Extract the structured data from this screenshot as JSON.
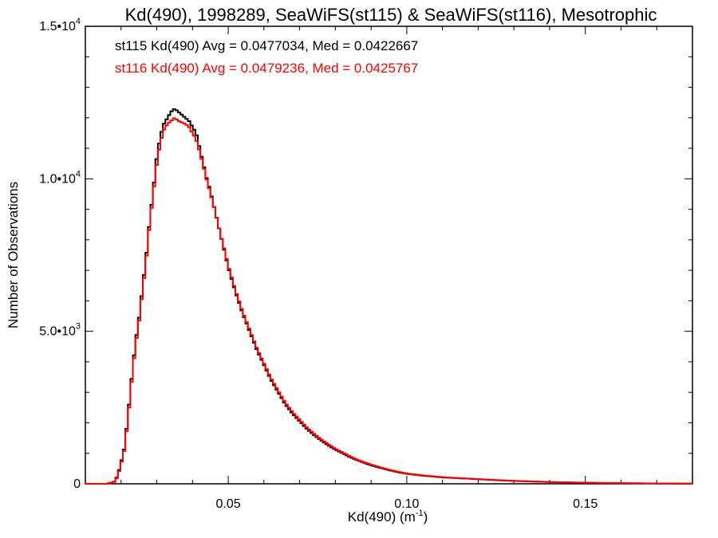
{
  "chart_data": {
    "type": "line",
    "title": "Kd(490), 1998289, SeaWiFS(st115) & SeaWiFS(st116), Mesotrophic",
    "xlabel": "Kd(490) (m",
    "xlabel_sup": "-1",
    "xlabel_end": ")",
    "ylabel": "Number of Observations",
    "xlim": [
      0.01,
      0.18
    ],
    "ylim": [
      0,
      15000
    ],
    "x_ticks": [
      {
        "value": 0.05,
        "label": "0.05"
      },
      {
        "value": 0.1,
        "label": "0.10"
      },
      {
        "value": 0.15,
        "label": "0.15"
      }
    ],
    "y_ticks": [
      {
        "value": 0,
        "mant": "0",
        "exp": ""
      },
      {
        "value": 5000,
        "mant": "5.0•10",
        "exp": "3"
      },
      {
        "value": 10000,
        "mant": "1.0•10",
        "exp": "4"
      },
      {
        "value": 15000,
        "mant": "1.5•10",
        "exp": "4"
      }
    ],
    "grid": false,
    "series": [
      {
        "name": "st115",
        "color": "#000000",
        "stats_text": "st115 Kd(490) Avg = 0.0477034, Med = 0.0422667",
        "points": [
          [
            0.01,
            0
          ],
          [
            0.016,
            0
          ],
          [
            0.018,
            60
          ],
          [
            0.019,
            250
          ],
          [
            0.02,
            700
          ],
          [
            0.021,
            1200
          ],
          [
            0.022,
            2300
          ],
          [
            0.023,
            3500
          ],
          [
            0.024,
            4600
          ],
          [
            0.025,
            5400
          ],
          [
            0.026,
            6400
          ],
          [
            0.027,
            7400
          ],
          [
            0.028,
            8600
          ],
          [
            0.029,
            9600
          ],
          [
            0.03,
            10700
          ],
          [
            0.031,
            11400
          ],
          [
            0.032,
            11800
          ],
          [
            0.033,
            12000
          ],
          [
            0.034,
            12200
          ],
          [
            0.035,
            12300
          ],
          [
            0.036,
            12200
          ],
          [
            0.037,
            12100
          ],
          [
            0.038,
            12000
          ],
          [
            0.039,
            11900
          ],
          [
            0.04,
            11700
          ],
          [
            0.041,
            11500
          ],
          [
            0.042,
            11000
          ],
          [
            0.043,
            10500
          ],
          [
            0.044,
            10000
          ],
          [
            0.045,
            9600
          ],
          [
            0.046,
            9100
          ],
          [
            0.047,
            8600
          ],
          [
            0.048,
            8100
          ],
          [
            0.049,
            7600
          ],
          [
            0.05,
            7100
          ],
          [
            0.052,
            6300
          ],
          [
            0.054,
            5600
          ],
          [
            0.056,
            5000
          ],
          [
            0.058,
            4400
          ],
          [
            0.06,
            3900
          ],
          [
            0.062,
            3400
          ],
          [
            0.064,
            3000
          ],
          [
            0.066,
            2600
          ],
          [
            0.068,
            2300
          ],
          [
            0.07,
            2050
          ],
          [
            0.072,
            1800
          ],
          [
            0.074,
            1600
          ],
          [
            0.076,
            1420
          ],
          [
            0.078,
            1260
          ],
          [
            0.08,
            1120
          ],
          [
            0.082,
            1000
          ],
          [
            0.084,
            880
          ],
          [
            0.086,
            780
          ],
          [
            0.088,
            690
          ],
          [
            0.09,
            610
          ],
          [
            0.092,
            540
          ],
          [
            0.094,
            480
          ],
          [
            0.096,
            420
          ],
          [
            0.098,
            370
          ],
          [
            0.1,
            330
          ],
          [
            0.105,
            260
          ],
          [
            0.11,
            210
          ],
          [
            0.115,
            180
          ],
          [
            0.12,
            150
          ],
          [
            0.125,
            120
          ],
          [
            0.13,
            95
          ],
          [
            0.135,
            75
          ],
          [
            0.14,
            58
          ],
          [
            0.145,
            45
          ],
          [
            0.15,
            35
          ],
          [
            0.155,
            27
          ],
          [
            0.16,
            20
          ],
          [
            0.165,
            15
          ],
          [
            0.17,
            11
          ],
          [
            0.175,
            8
          ],
          [
            0.18,
            6
          ]
        ]
      },
      {
        "name": "st116",
        "color": "#ff0000",
        "stats_text": "st116 Kd(490) Avg = 0.0479236, Med = 0.0425767",
        "points": [
          [
            0.01,
            0
          ],
          [
            0.016,
            0
          ],
          [
            0.018,
            50
          ],
          [
            0.019,
            220
          ],
          [
            0.02,
            650
          ],
          [
            0.021,
            1150
          ],
          [
            0.022,
            2200
          ],
          [
            0.023,
            3400
          ],
          [
            0.024,
            4500
          ],
          [
            0.025,
            5300
          ],
          [
            0.026,
            6300
          ],
          [
            0.027,
            7300
          ],
          [
            0.028,
            8500
          ],
          [
            0.029,
            9500
          ],
          [
            0.03,
            10500
          ],
          [
            0.031,
            11200
          ],
          [
            0.032,
            11600
          ],
          [
            0.033,
            11800
          ],
          [
            0.034,
            11900
          ],
          [
            0.035,
            12000
          ],
          [
            0.036,
            11900
          ],
          [
            0.037,
            11850
          ],
          [
            0.038,
            11800
          ],
          [
            0.039,
            11700
          ],
          [
            0.04,
            11500
          ],
          [
            0.041,
            11300
          ],
          [
            0.042,
            10900
          ],
          [
            0.043,
            10450
          ],
          [
            0.044,
            9950
          ],
          [
            0.045,
            9550
          ],
          [
            0.046,
            9100
          ],
          [
            0.047,
            8600
          ],
          [
            0.048,
            8100
          ],
          [
            0.049,
            7650
          ],
          [
            0.05,
            7150
          ],
          [
            0.052,
            6350
          ],
          [
            0.054,
            5650
          ],
          [
            0.056,
            5050
          ],
          [
            0.058,
            4450
          ],
          [
            0.06,
            3950
          ],
          [
            0.062,
            3450
          ],
          [
            0.064,
            3050
          ],
          [
            0.066,
            2650
          ],
          [
            0.068,
            2350
          ],
          [
            0.07,
            2100
          ],
          [
            0.072,
            1850
          ],
          [
            0.074,
            1640
          ],
          [
            0.076,
            1460
          ],
          [
            0.078,
            1300
          ],
          [
            0.08,
            1150
          ],
          [
            0.082,
            1030
          ],
          [
            0.084,
            910
          ],
          [
            0.086,
            800
          ],
          [
            0.088,
            710
          ],
          [
            0.09,
            630
          ],
          [
            0.092,
            560
          ],
          [
            0.094,
            495
          ],
          [
            0.096,
            435
          ],
          [
            0.098,
            385
          ],
          [
            0.1,
            340
          ],
          [
            0.105,
            270
          ],
          [
            0.11,
            220
          ],
          [
            0.115,
            185
          ],
          [
            0.12,
            155
          ],
          [
            0.125,
            125
          ],
          [
            0.13,
            98
          ],
          [
            0.135,
            78
          ],
          [
            0.14,
            60
          ],
          [
            0.145,
            47
          ],
          [
            0.15,
            36
          ],
          [
            0.155,
            28
          ],
          [
            0.16,
            21
          ],
          [
            0.165,
            16
          ],
          [
            0.17,
            12
          ],
          [
            0.175,
            9
          ],
          [
            0.18,
            6
          ]
        ]
      }
    ]
  }
}
